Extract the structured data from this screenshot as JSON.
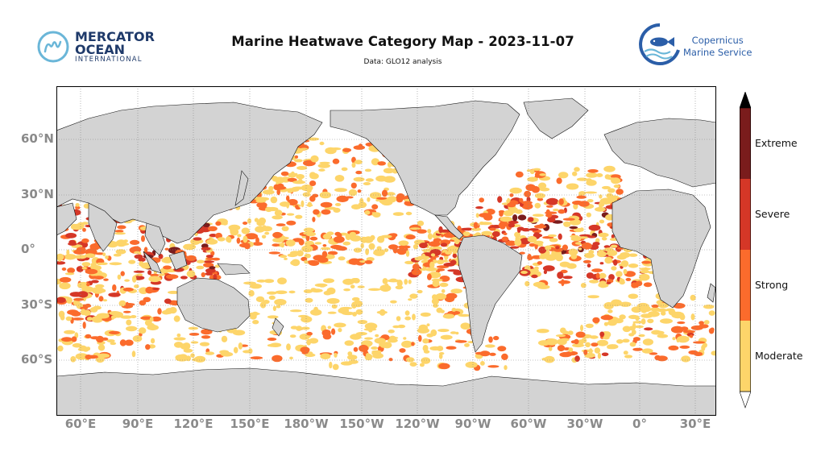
{
  "header": {
    "title": "Marine Heatwave Category Map - 2023-11-07",
    "subtitle": "Data: GLO12 analysis"
  },
  "logos": {
    "left": {
      "line1": "MERCATOR",
      "line2": "OCEAN",
      "line3": "INTERNATIONAL",
      "mark": "m"
    },
    "right": {
      "line1": "Copernicus",
      "line2": "Marine Service",
      "icon": "fish-icon"
    }
  },
  "map": {
    "projection": "plate-carree",
    "central_longitude": "180°W",
    "lat_labels": [
      "60°N",
      "30°N",
      "0°",
      "30°S",
      "60°S"
    ],
    "lon_labels": [
      "60°E",
      "90°E",
      "120°E",
      "150°E",
      "180°W",
      "150°W",
      "120°W",
      "90°W",
      "60°W",
      "30°W",
      "0°",
      "30°E"
    ],
    "land_color": "#d3d3d3",
    "ocean_color": "#ffffff",
    "grid": true,
    "grid_style": "dotted"
  },
  "colorbar": {
    "categories": [
      "Moderate",
      "Strong",
      "Severe",
      "Extreme"
    ],
    "colors": [
      "#fdd56a",
      "#fb6b2c",
      "#d53727",
      "#7a1c1c"
    ],
    "extend": "both",
    "upper_arrow_color": "#000000",
    "lower_arrow_color": "#ffffff"
  }
}
